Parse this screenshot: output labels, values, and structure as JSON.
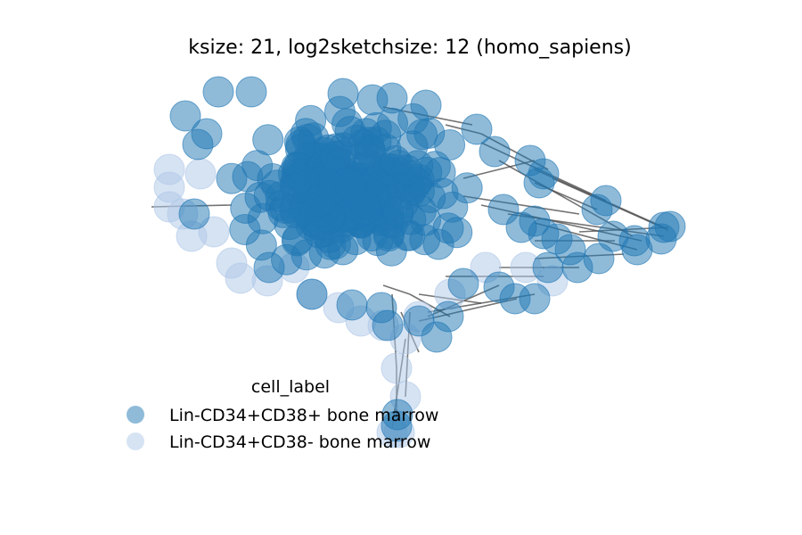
{
  "chart_data": {
    "type": "network",
    "title": "ksize: 21, log2sketchsize: 12 (homo_sapiens)",
    "legend": {
      "title": "cell_label",
      "placement": "lower-left",
      "entries": [
        {
          "label": "Lin-CD34+CD38+ bone marrow",
          "color": "#1f77b4"
        },
        {
          "label": "Lin-CD34+CD38- bone marrow",
          "color": "#aec7e8"
        }
      ]
    },
    "node_alpha": 0.5,
    "edge_color": "#444444",
    "axes_visible": false
  }
}
